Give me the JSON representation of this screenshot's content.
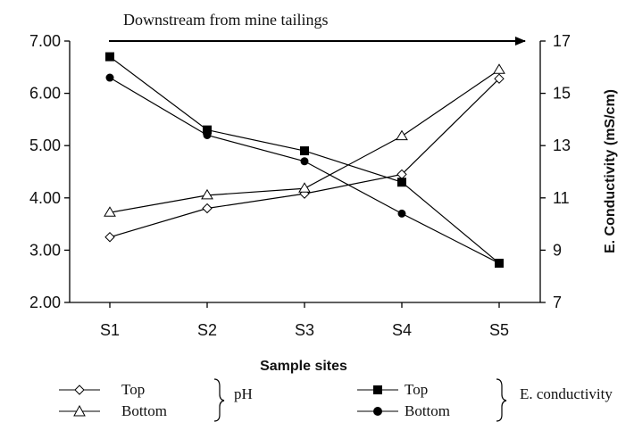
{
  "chart_data": {
    "type": "line",
    "annotation": "Downstream from mine tailings",
    "categories": [
      "S1",
      "S2",
      "S3",
      "S4",
      "S5"
    ],
    "xlabel": "Sample sites",
    "y_left": {
      "label": "",
      "ylim": [
        2.0,
        7.0
      ],
      "ticks": [
        "2.00",
        "3.00",
        "4.00",
        "5.00",
        "6.00",
        "7.00"
      ]
    },
    "y_right": {
      "label": "E. Conductivity (mS/cm)",
      "ylim": [
        7,
        17
      ],
      "ticks": [
        "7",
        "9",
        "11",
        "13",
        "15",
        "17"
      ]
    },
    "grid": false,
    "series": [
      {
        "name": "Top",
        "group": "pH",
        "axis": "left",
        "marker": "diamond-open",
        "values": [
          3.25,
          3.8,
          4.08,
          4.45,
          6.28
        ]
      },
      {
        "name": "Bottom",
        "group": "pH",
        "axis": "left",
        "marker": "triangle-open",
        "values": [
          3.72,
          4.05,
          4.18,
          5.18,
          6.45
        ]
      },
      {
        "name": "Top",
        "group": "E. conductivity",
        "axis": "right",
        "marker": "square-filled",
        "values": [
          16.4,
          13.6,
          12.8,
          11.6,
          8.5
        ]
      },
      {
        "name": "Bottom",
        "group": "E. conductivity",
        "axis": "right",
        "marker": "circle-filled",
        "values": [
          15.6,
          13.4,
          12.4,
          10.4,
          8.5
        ]
      }
    ],
    "legend": {
      "placement": "bottom",
      "groups": [
        {
          "label": "pH",
          "items": [
            "Top",
            "Bottom"
          ]
        },
        {
          "label": "E. conductivity",
          "items": [
            "Top",
            "Bottom"
          ]
        }
      ]
    }
  }
}
